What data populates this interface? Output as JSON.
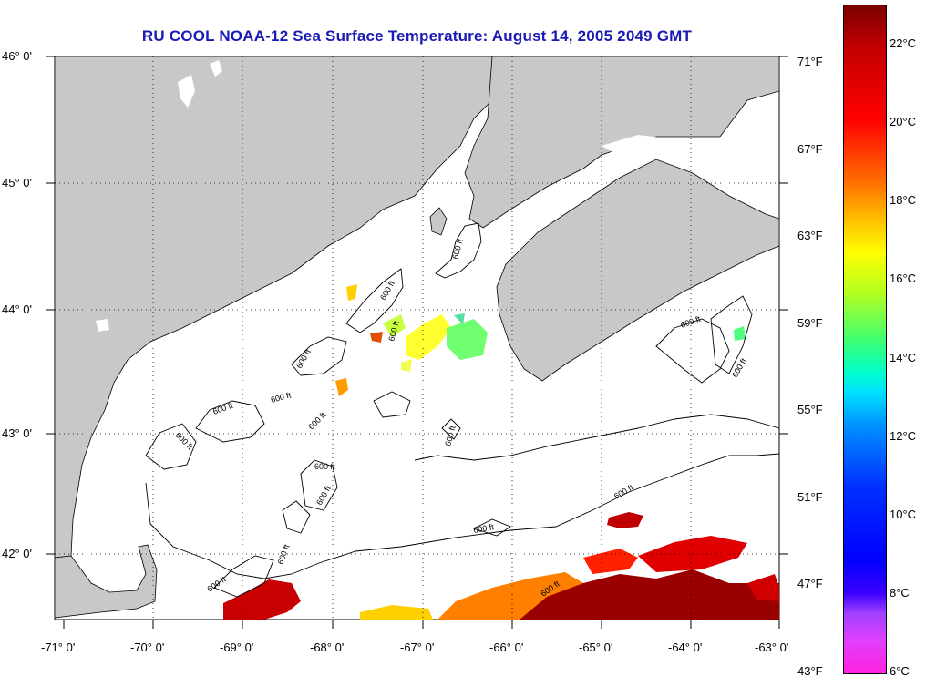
{
  "title": "RU COOL  NOAA-12  Sea Surface Temperature:  August 14, 2005 2049 GMT",
  "y_axis": [
    "46° 0'",
    "45° 0'",
    "44° 0'",
    "43° 0'",
    "42° 0'"
  ],
  "x_axis": [
    "-71° 0'",
    "-70° 0'",
    "-69° 0'",
    "-68° 0'",
    "-67° 0'",
    "-66° 0'",
    "-65° 0'",
    "-64° 0'",
    "-63° 0'"
  ],
  "fahrenheit_scale": [
    "71°F",
    "67°F",
    "63°F",
    "59°F",
    "55°F",
    "51°F",
    "47°F",
    "43°F"
  ],
  "celsius_scale": [
    "22°C",
    "20°C",
    "18°C",
    "16°C",
    "14°C",
    "12°C",
    "10°C",
    "8°C",
    "6°C"
  ],
  "contour_label": "600 ft",
  "colors": {
    "land": "#c8c8c8",
    "water": "#ffffff",
    "title": "#1a1ab4"
  }
}
